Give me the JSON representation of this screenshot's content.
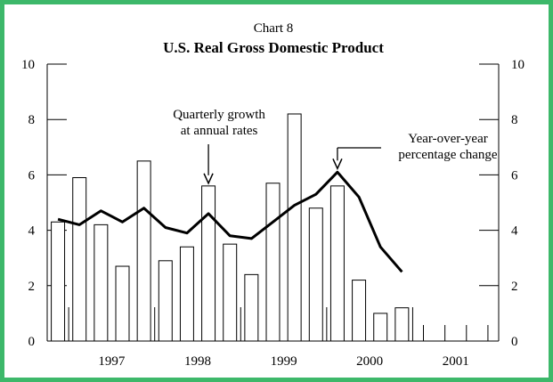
{
  "chart_data": {
    "type": "bar",
    "kicker": "Chart 8",
    "title": "U.S. Real Gross Domestic Product",
    "xlabel": "",
    "ylabel": "",
    "ylim": [
      0,
      10
    ],
    "yticks": [
      0,
      2,
      4,
      6,
      8,
      10
    ],
    "year_labels": [
      "1997",
      "1998",
      "1999",
      "2000",
      "2001"
    ],
    "categories": [
      "1996Q4",
      "1997Q1",
      "1997Q2",
      "1997Q3",
      "1997Q4",
      "1998Q1",
      "1998Q2",
      "1998Q3",
      "1998Q4",
      "1999Q1",
      "1999Q2",
      "1999Q3",
      "1999Q4",
      "2000Q1",
      "2000Q2",
      "2000Q3",
      "2000Q4",
      "2001Q1",
      "2001Q2",
      "2001Q3",
      "2001Q4"
    ],
    "grid": false,
    "colors": {
      "frame": "#3db86a",
      "bar_fill": "#ffffff",
      "bar_stroke": "#000000",
      "line": "#000000"
    },
    "series": [
      {
        "name": "Quarterly growth at annual rates",
        "type": "bar",
        "values": [
          4.3,
          5.9,
          4.2,
          2.7,
          6.5,
          2.9,
          3.4,
          5.6,
          3.5,
          2.4,
          5.7,
          8.2,
          4.8,
          5.6,
          2.2,
          1.0,
          1.2,
          null,
          null,
          null,
          null
        ]
      },
      {
        "name": "Year-over-year percentage change",
        "type": "line",
        "values": [
          4.4,
          4.2,
          4.7,
          4.3,
          4.8,
          4.1,
          3.9,
          4.6,
          3.8,
          3.7,
          4.3,
          4.9,
          5.3,
          6.1,
          5.2,
          3.4,
          2.5,
          null,
          null,
          null,
          null
        ]
      }
    ],
    "annotations": [
      {
        "lines": [
          "Quarterly growth",
          "at annual rates"
        ],
        "target_category": "1998Q3",
        "target_series": "bar"
      },
      {
        "lines": [
          "Year-over-year",
          "percentage change"
        ],
        "target_category": "2000Q1",
        "target_series": "line"
      }
    ]
  }
}
